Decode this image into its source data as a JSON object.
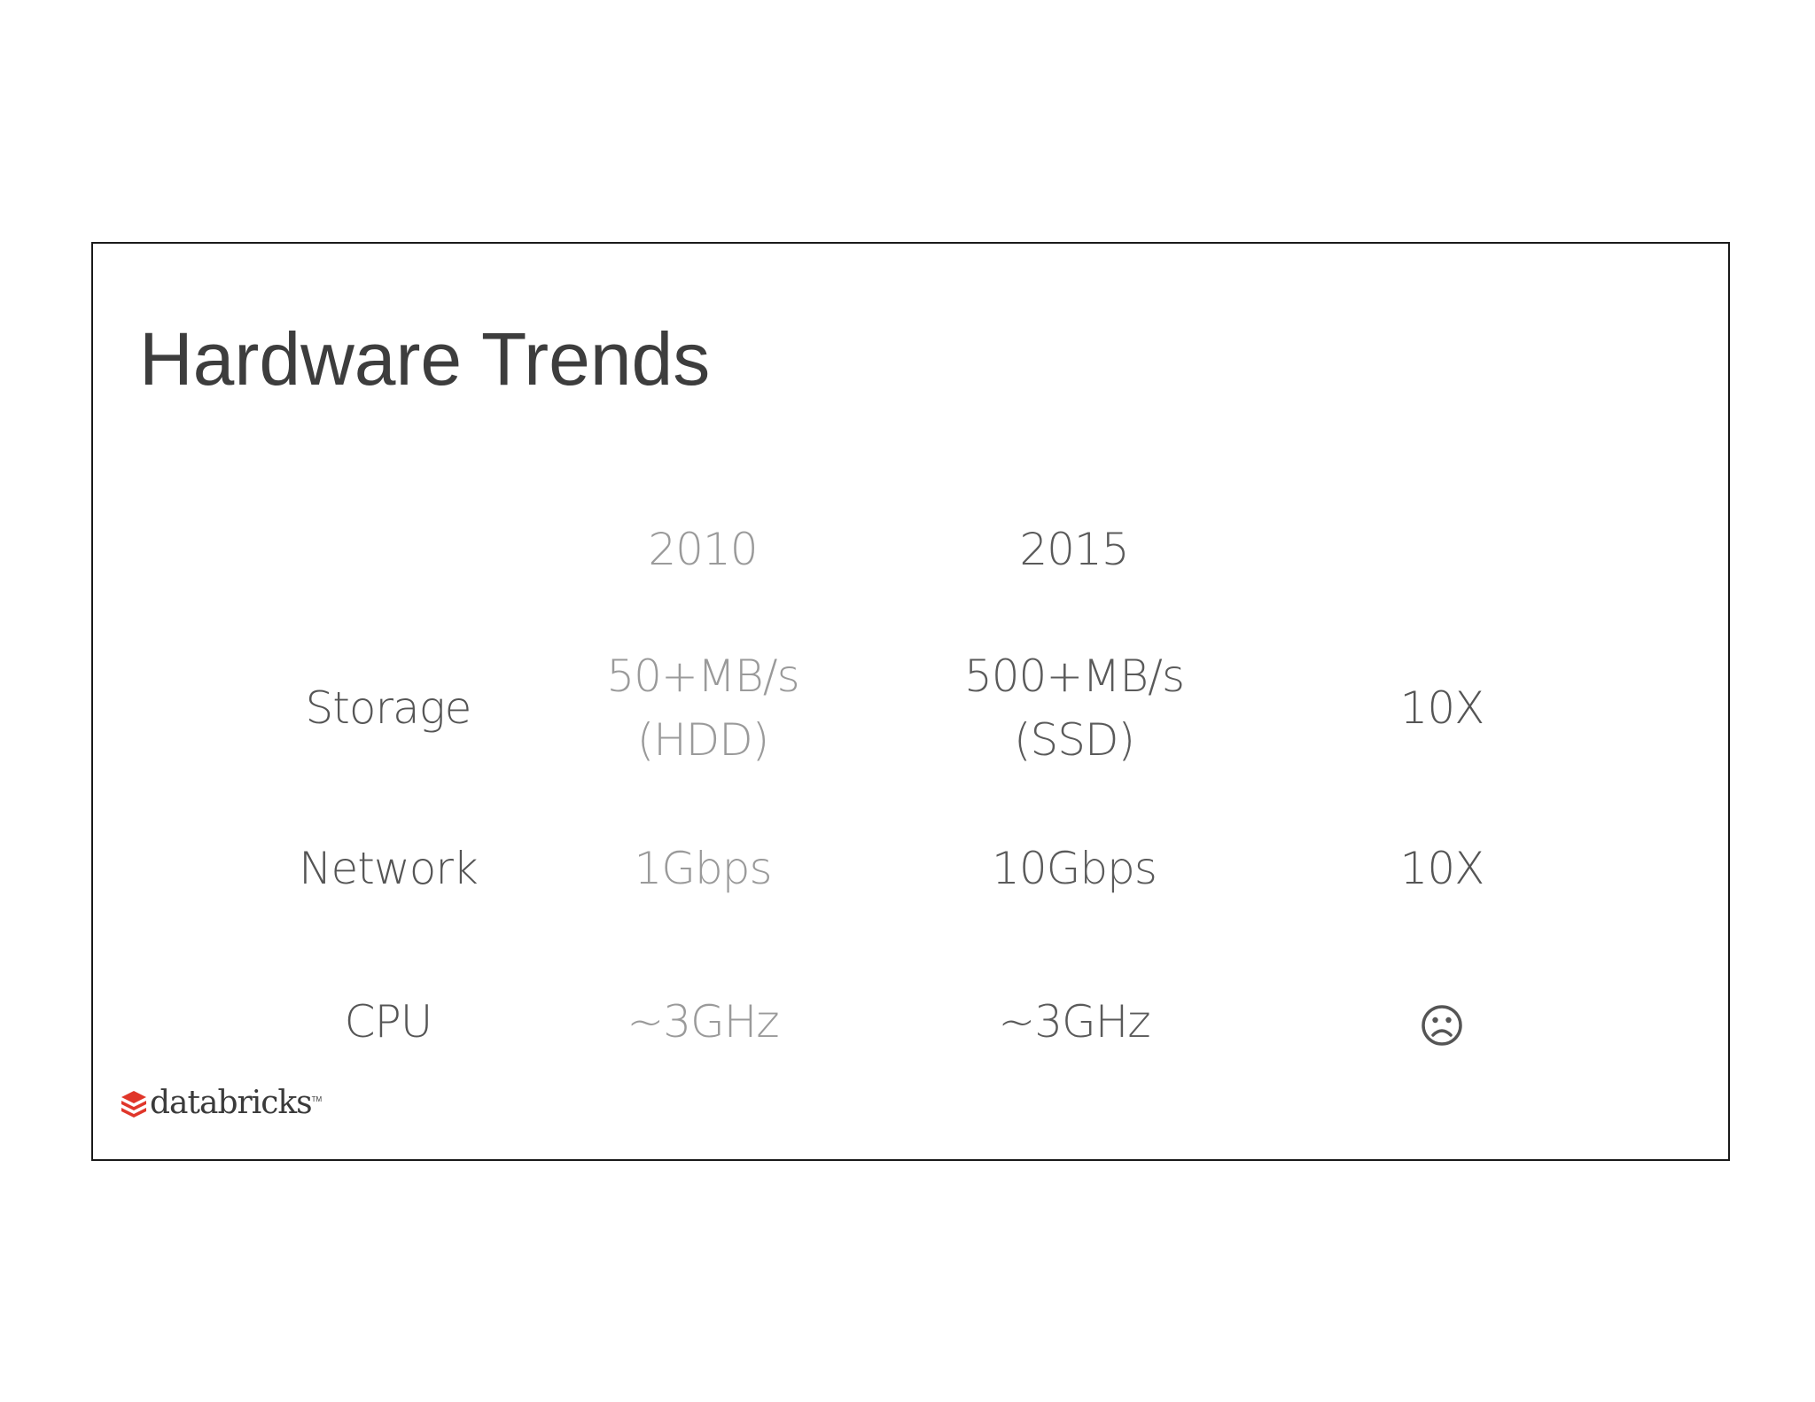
{
  "slide": {
    "title": "Hardware Trends",
    "columns": {
      "year_old": "2010",
      "year_new": "2015"
    },
    "rows": [
      {
        "label": "Storage",
        "old_line1": "50+MB/s",
        "old_line2": "(HDD)",
        "new_line1": "500+MB/s",
        "new_line2": "(SSD)",
        "gain": "10X"
      },
      {
        "label": "Network",
        "old": "1Gbps",
        "new": "10Gbps",
        "gain": "10X"
      },
      {
        "label": "CPU",
        "old": "~3GHz",
        "new": "~3GHz",
        "gain_icon": "frown-face-icon"
      }
    ],
    "logo": {
      "text": "databricks",
      "mark_color": "#e0362a"
    }
  }
}
